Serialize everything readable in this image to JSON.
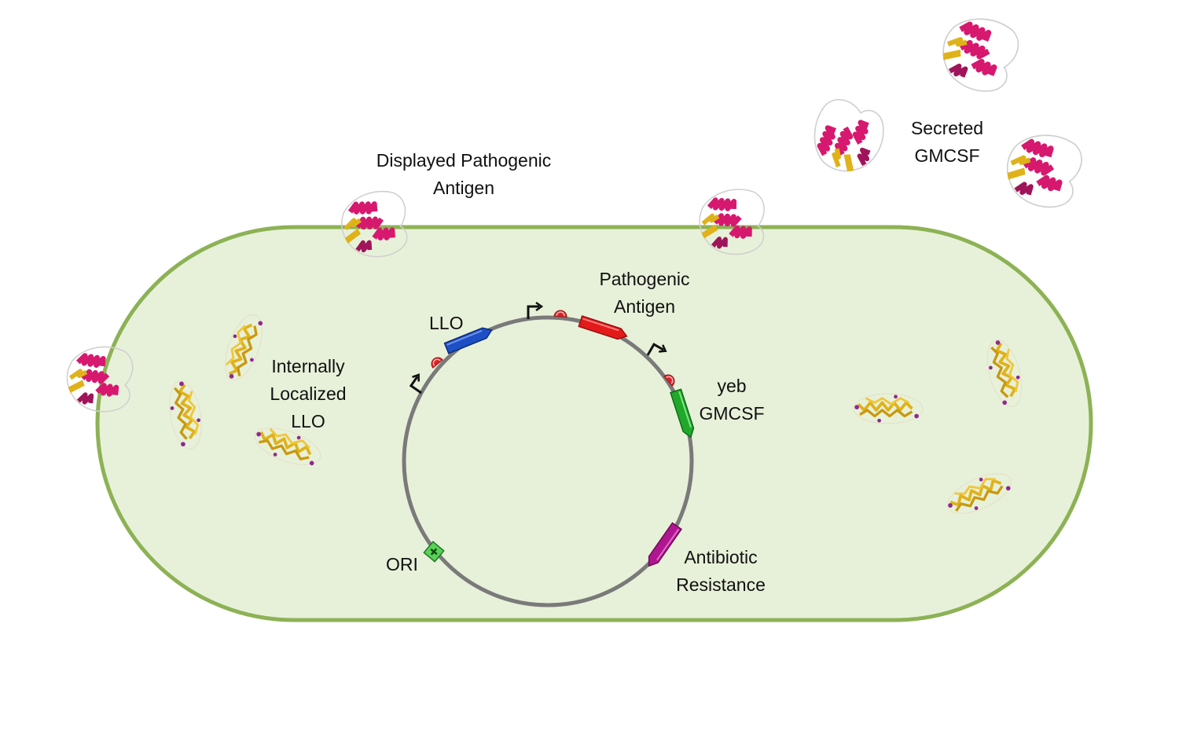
{
  "labels": {
    "displayed_antigen": [
      "Displayed Pathogenic",
      "Antigen"
    ],
    "secreted_gmcsf": [
      "Secreted",
      "GMCSF"
    ],
    "pathogenic_antigen": [
      "Pathogenic",
      "Antigen"
    ],
    "llo": "LLO",
    "internal_llo": [
      "Internally",
      "Localized",
      "LLO"
    ],
    "yeb_gmcsf": [
      "yeb",
      "GMCSF"
    ],
    "ori": "ORI",
    "antibiotic_resistance": [
      "Antibiotic",
      "Resistance"
    ]
  },
  "colors": {
    "cell_fill": "#e7f1d9",
    "cell_border": "#8db255",
    "plasmid": "#7a7a7a",
    "llo_gene": "#1f4fc4",
    "antigen_gene": "#e31a1a",
    "gmcsf_gene": "#20a82a",
    "resistance_gene": "#b0168f",
    "ori": "#5ad15a",
    "helix": "#d6186f",
    "sheet": "#e0b21a",
    "terminator": "#d9232a"
  },
  "icons": {
    "promoter": "promoter-arrow-icon",
    "terminator": "terminator-icon",
    "protein": "protein-ribbon-icon",
    "llo_protein": "llo-protein-icon"
  }
}
